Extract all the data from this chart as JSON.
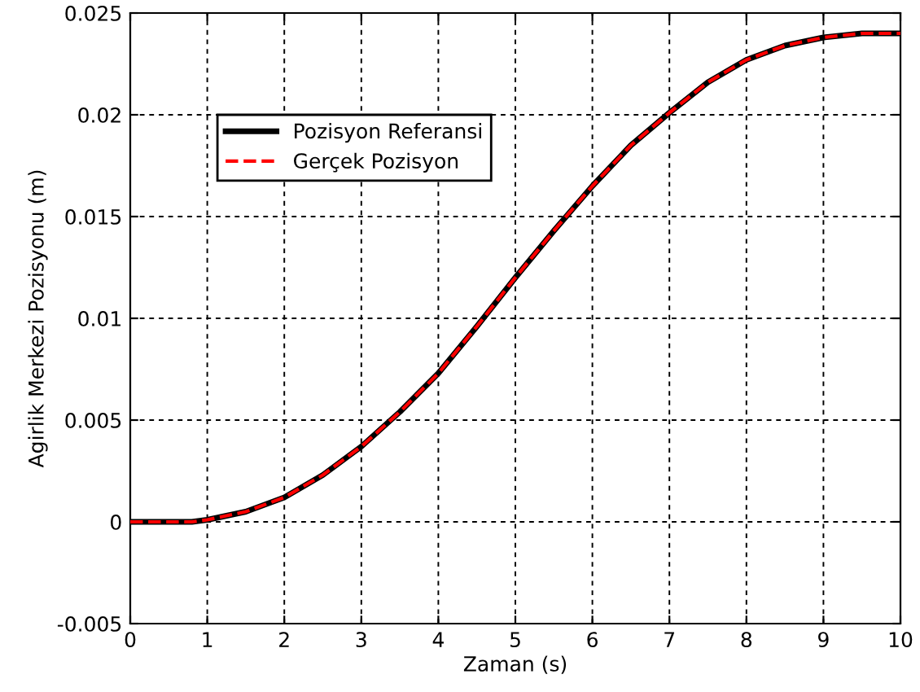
{
  "chart_data": {
    "type": "line",
    "xlabel": "Zaman (s)",
    "ylabel": "Agirlik Merkezi Pozisyonu (m)",
    "x": [
      0,
      0.5,
      0.8,
      1,
      1.5,
      2,
      2.5,
      3,
      3.5,
      4,
      4.5,
      5,
      5.5,
      6,
      6.5,
      7,
      7.5,
      8,
      8.5,
      9,
      9.5,
      10
    ],
    "series": [
      {
        "name": "Pozisyon Referansi",
        "color": "#000000",
        "line_style": "solid",
        "values": [
          0,
          0,
          0,
          0.0001,
          0.0005,
          0.0012,
          0.0023,
          0.0037,
          0.0054,
          0.0073,
          0.0096,
          0.012,
          0.0143,
          0.0165,
          0.0185,
          0.0201,
          0.0216,
          0.0227,
          0.0234,
          0.0238,
          0.024,
          0.024
        ]
      },
      {
        "name": "Gerçek Pozisyon",
        "color": "#ff0000",
        "line_style": "dashed",
        "values": [
          0,
          0,
          0,
          0.0001,
          0.0005,
          0.0012,
          0.0023,
          0.0037,
          0.0054,
          0.0073,
          0.0096,
          0.012,
          0.0143,
          0.0165,
          0.0185,
          0.0201,
          0.0216,
          0.0227,
          0.0234,
          0.0238,
          0.024,
          0.024
        ]
      }
    ],
    "xlim": [
      0,
      10
    ],
    "xticks": [
      0,
      1,
      2,
      3,
      4,
      5,
      6,
      7,
      8,
      9,
      10
    ],
    "ylim": [
      -0.005,
      0.025
    ],
    "yticks": [
      -0.005,
      0,
      0.005,
      0.01,
      0.015,
      0.02,
      0.025
    ],
    "grid": true,
    "legend": "top left",
    "marker": "none"
  }
}
